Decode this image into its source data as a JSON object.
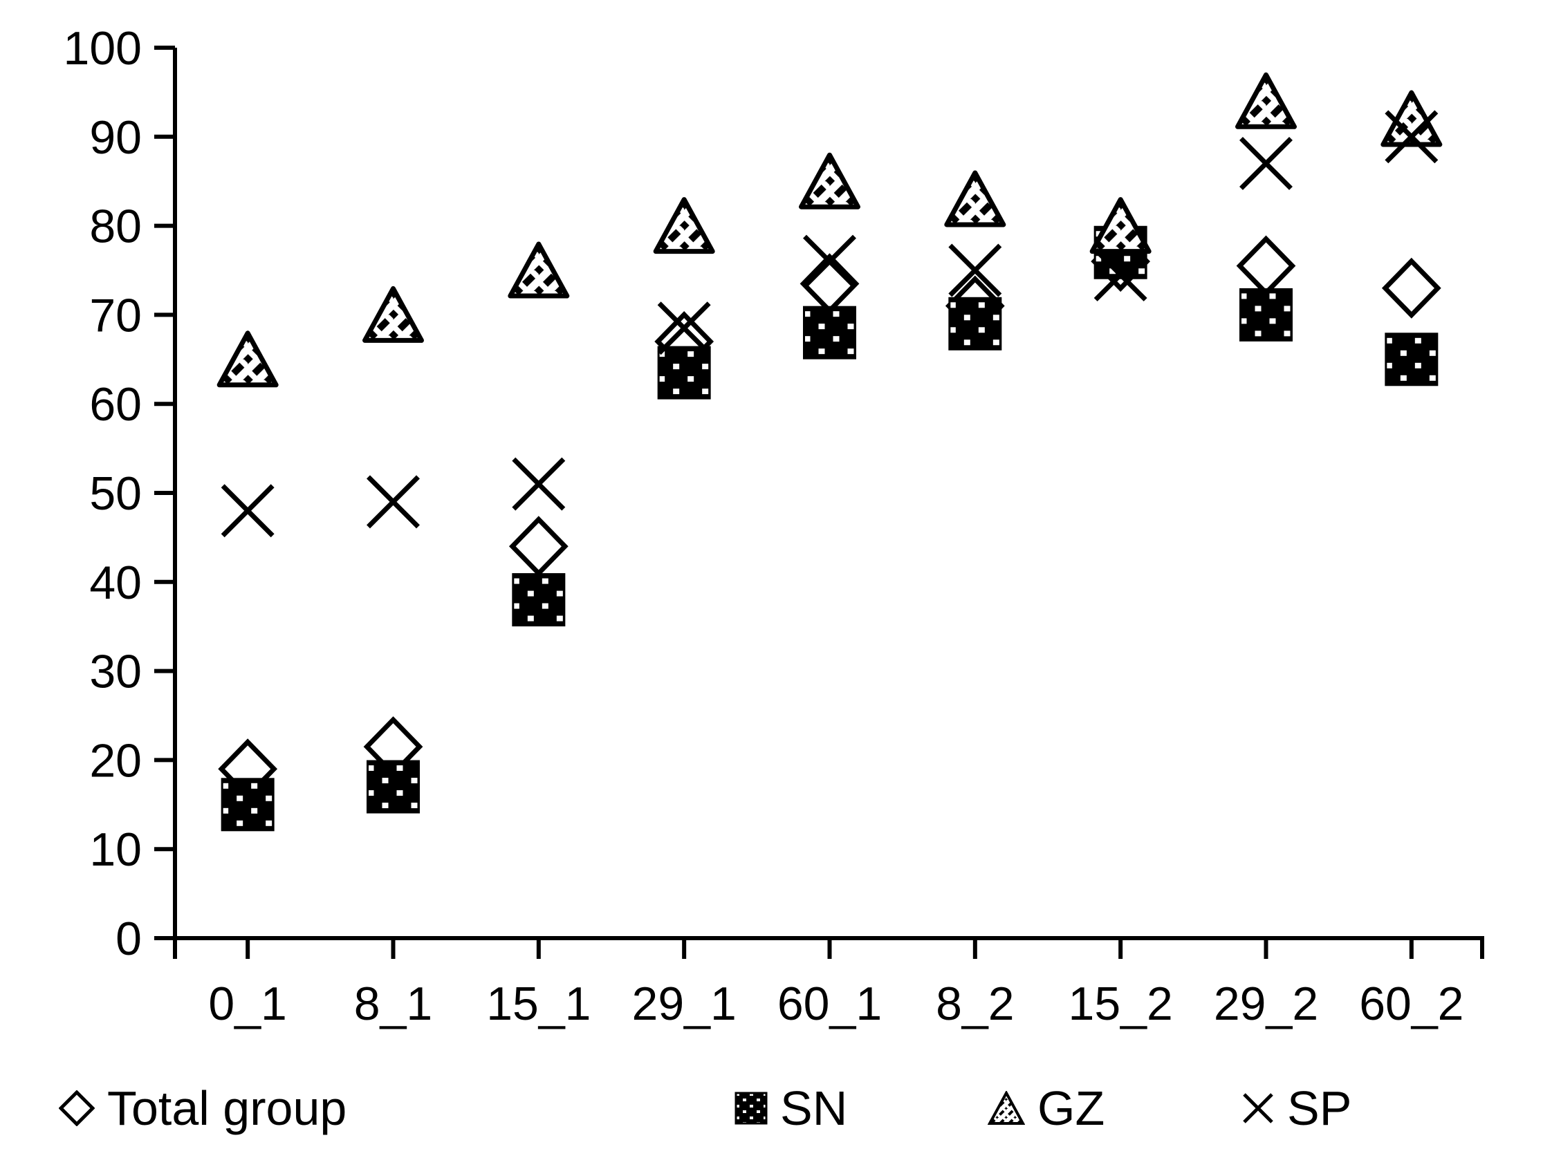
{
  "chart_data": {
    "type": "scatter",
    "title": "",
    "xlabel": "",
    "ylabel": "",
    "categories": [
      "0_1",
      "8_1",
      "15_1",
      "29_1",
      "60_1",
      "8_2",
      "15_2",
      "29_2",
      "60_2"
    ],
    "series": [
      {
        "name": "Total group",
        "marker": "diamond-open",
        "values": [
          19,
          21.5,
          44,
          67,
          73.5,
          71,
          76,
          75.5,
          73
        ]
      },
      {
        "name": "SN",
        "marker": "square-dotted",
        "values": [
          15,
          17,
          38,
          63.5,
          68,
          69,
          77,
          70,
          65
        ]
      },
      {
        "name": "GZ",
        "marker": "triangle-hatched",
        "values": [
          65,
          70,
          75,
          80,
          85,
          83,
          80,
          94,
          92
        ]
      },
      {
        "name": "SP",
        "marker": "x-cross",
        "values": [
          48,
          49,
          51,
          68.5,
          76,
          75,
          74.5,
          87,
          90
        ]
      }
    ],
    "ylim": [
      0,
      100
    ],
    "yticks": [
      0,
      10,
      20,
      30,
      40,
      50,
      60,
      70,
      80,
      90,
      100
    ],
    "grid": false,
    "legend_position": "bottom",
    "colors": {
      "foreground": "#000000",
      "background": "#ffffff"
    }
  }
}
